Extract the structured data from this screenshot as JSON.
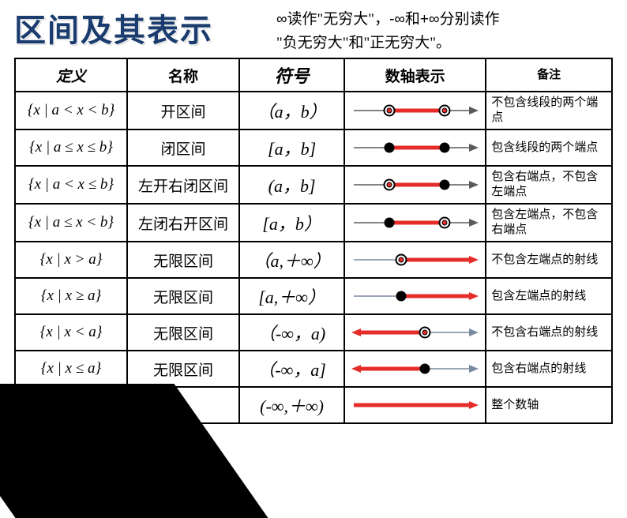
{
  "title": "区间及其表示",
  "subtitle_parts": {
    "p1": "∞读作",
    "q1": "\"无穷大\"",
    "p2": "，-∞和+∞分别读作",
    "q2": "\"负无穷大\"",
    "p3": "和",
    "q3": "\"正无穷大\"",
    "p4": "。"
  },
  "headers": {
    "def": "定义",
    "name": "名称",
    "sym": "符号",
    "vis": "数轴表示",
    "note": "备注"
  },
  "style": {
    "highlightColor": "#e62c29",
    "axisColor": "#5a5a5a",
    "axisColor2": "#7a8aa0",
    "openFill": "#ffffff",
    "closedFill": "#000000"
  },
  "rows": [
    {
      "def": "{x | a < x < b}",
      "name": "开区间",
      "sym": "（a，b）",
      "note": "不包含线段的两个端点",
      "vis": {
        "kind": "seg",
        "left": "open",
        "right": "open"
      }
    },
    {
      "def": "{x | a ≤ x ≤ b}",
      "name": "闭区间",
      "sym": "[a，b]",
      "note": "包含线段的两个端点",
      "vis": {
        "kind": "seg",
        "left": "closed",
        "right": "closed"
      }
    },
    {
      "def": "{x | a < x ≤ b}",
      "name": "左开右闭区间",
      "sym": "(a，b]",
      "note": "包含右端点，不包含左端点",
      "vis": {
        "kind": "seg",
        "left": "open",
        "right": "closed"
      }
    },
    {
      "def": "{x | a ≤ x < b}",
      "name": "左闭右开区间",
      "sym": "[a，b）",
      "note": "包含左端点，不包含右端点",
      "vis": {
        "kind": "seg",
        "left": "closed",
        "right": "open"
      }
    },
    {
      "def": "{x | x > a}",
      "name": "无限区间",
      "sym": "（a,＋∞）",
      "note": "不包含左端点的射线",
      "vis": {
        "kind": "ray-right",
        "endpoint": "open"
      }
    },
    {
      "def": "{x | x ≥ a}",
      "name": "无限区间",
      "sym": "[a,＋∞）",
      "note": "包含左端点的射线",
      "vis": {
        "kind": "ray-right",
        "endpoint": "closed"
      }
    },
    {
      "def": "{x | x < a}",
      "name": "无限区间",
      "sym": "（-∞，a)",
      "note": "不包含右端点的射线",
      "vis": {
        "kind": "ray-left",
        "endpoint": "open"
      }
    },
    {
      "def": "{x | x ≤ a}",
      "name": "无限区间",
      "sym": "（-∞，a]",
      "note": "包含右端点的射线",
      "vis": {
        "kind": "ray-left",
        "endpoint": "closed"
      }
    },
    {
      "def": "",
      "name": "",
      "sym": "(-∞,＋∞)",
      "note": "整个数轴",
      "vis": {
        "kind": "full"
      }
    }
  ]
}
